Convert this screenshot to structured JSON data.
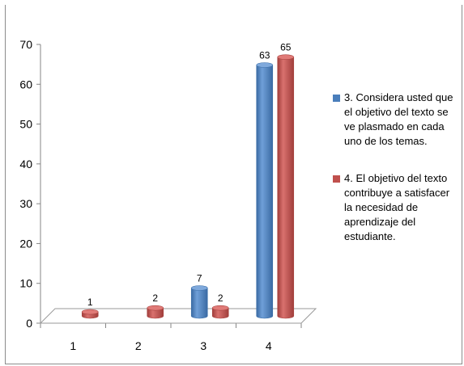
{
  "chart_data": {
    "type": "bar",
    "categories": [
      "1",
      "2",
      "3",
      "4"
    ],
    "series": [
      {
        "name": "3. Considera usted que el objetivo del texto se ve plasmado en cada uno de los temas.",
        "values": [
          null,
          null,
          7,
          63
        ],
        "color": "#4a7ebb"
      },
      {
        "name": "4. El objetivo del texto contribuye a satisfacer la necesidad de aprendizaje del estudiante.",
        "values": [
          1,
          2,
          2,
          65
        ],
        "color": "#c0504d"
      }
    ],
    "ylim": [
      0,
      70
    ],
    "y_ticks": [
      "0",
      "10",
      "20",
      "30",
      "40",
      "50",
      "60",
      "70"
    ],
    "style": "3d-cylinder",
    "legend_position": "right",
    "grid": false
  }
}
